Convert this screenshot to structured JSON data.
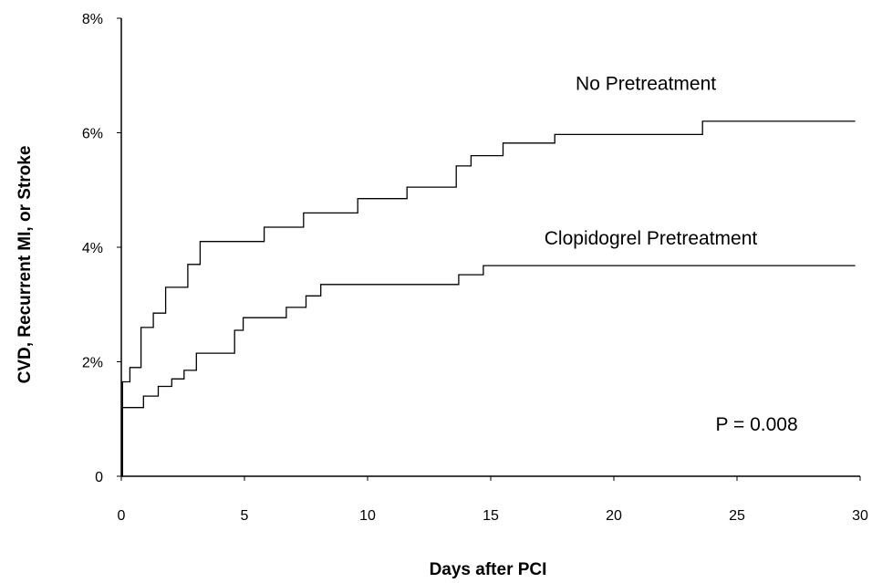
{
  "chart_data": {
    "type": "line",
    "title": "",
    "xlabel": "Days after PCI",
    "ylabel": "CVD, Recurrent MI, or Stroke",
    "xlim": [
      0,
      30
    ],
    "ylim": [
      0,
      8
    ],
    "x_ticks": [
      0,
      5,
      10,
      15,
      20,
      25,
      30
    ],
    "x_tick_labels": [
      "0",
      "5",
      "10",
      "15",
      "20",
      "25",
      "30"
    ],
    "y_ticks": [
      0,
      2,
      4,
      6,
      8
    ],
    "y_tick_labels": [
      "0",
      "2%",
      "4%",
      "6%",
      "8%"
    ],
    "grid": false,
    "step": true,
    "series": [
      {
        "name": "No Pretreatment",
        "color": "#000000",
        "points": [
          [
            0,
            0
          ],
          [
            0.05,
            1.65
          ],
          [
            0.35,
            1.9
          ],
          [
            0.8,
            2.6
          ],
          [
            1.3,
            2.85
          ],
          [
            1.8,
            3.3
          ],
          [
            2.7,
            3.7
          ],
          [
            3.2,
            4.1
          ],
          [
            5.8,
            4.35
          ],
          [
            7.4,
            4.6
          ],
          [
            9.6,
            4.85
          ],
          [
            11.6,
            5.05
          ],
          [
            13.6,
            5.42
          ],
          [
            14.2,
            5.6
          ],
          [
            15.5,
            5.82
          ],
          [
            17.6,
            5.97
          ],
          [
            23.6,
            6.2
          ],
          [
            29.8,
            6.2
          ]
        ]
      },
      {
        "name": "Clopidogrel Pretreatment",
        "color": "#000000",
        "points": [
          [
            0,
            0
          ],
          [
            0.05,
            1.2
          ],
          [
            0.9,
            1.4
          ],
          [
            1.5,
            1.57
          ],
          [
            2.05,
            1.7
          ],
          [
            2.55,
            1.85
          ],
          [
            3.05,
            2.15
          ],
          [
            4.6,
            2.55
          ],
          [
            4.95,
            2.77
          ],
          [
            6.7,
            2.95
          ],
          [
            7.5,
            3.15
          ],
          [
            8.1,
            3.35
          ],
          [
            13.7,
            3.52
          ],
          [
            14.7,
            3.68
          ],
          [
            29.8,
            3.68
          ]
        ]
      }
    ],
    "annotations": [
      {
        "text": "No Pretreatment",
        "x": 21.3,
        "y": 6.75
      },
      {
        "text": "Clopidogrel Pretreatment",
        "x": 21.5,
        "y": 4.05
      },
      {
        "text": "P = 0.008",
        "x": 25.8,
        "y": 0.8
      }
    ]
  }
}
